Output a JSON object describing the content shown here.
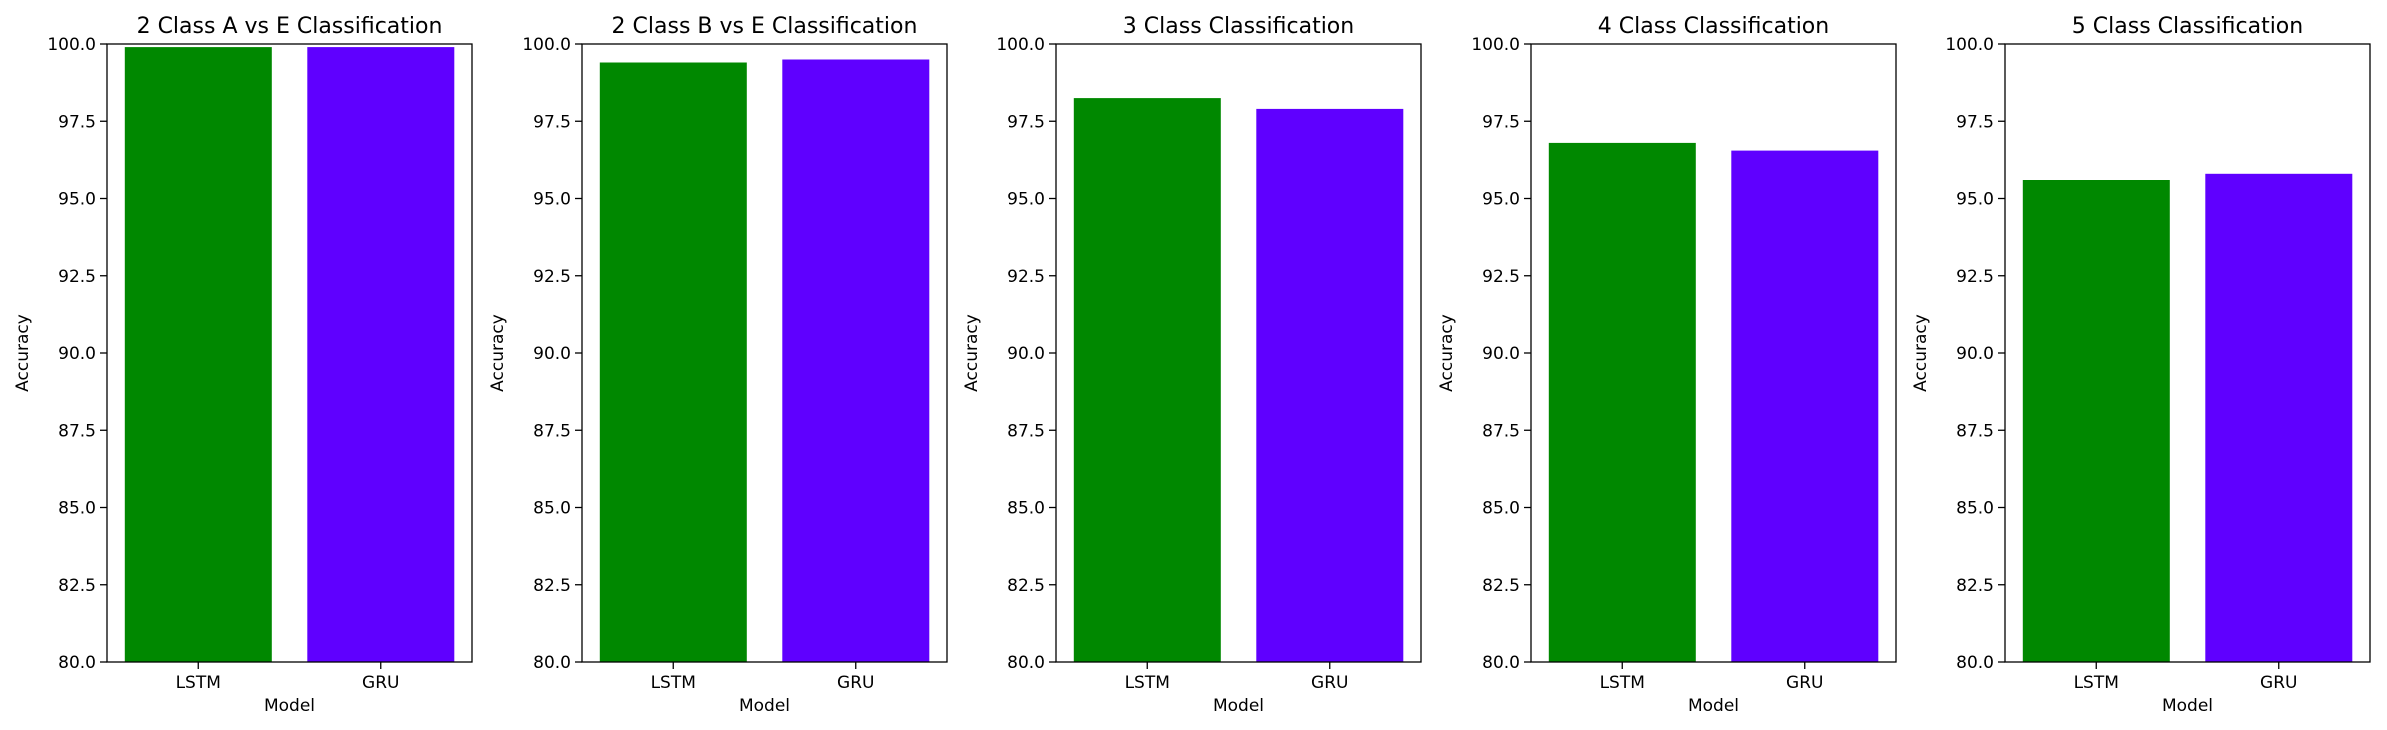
{
  "chart_data": [
    {
      "type": "bar",
      "title": "2 Class A vs E Classification",
      "categories": [
        "LSTM",
        "GRU"
      ],
      "values": [
        99.9,
        99.9
      ],
      "colors": [
        "#008800",
        "#5f00ff"
      ],
      "xlabel": "Model",
      "ylabel": "Accuracy",
      "ylim": [
        80,
        100
      ],
      "yticks": [
        "80.0",
        "82.5",
        "85.0",
        "87.5",
        "90.0",
        "92.5",
        "95.0",
        "97.5",
        "100.0"
      ],
      "grid": false
    },
    {
      "type": "bar",
      "title": "2 Class B vs E Classification",
      "categories": [
        "LSTM",
        "GRU"
      ],
      "values": [
        99.4,
        99.5
      ],
      "colors": [
        "#008800",
        "#5f00ff"
      ],
      "xlabel": "Model",
      "ylabel": "Accuracy",
      "ylim": [
        80,
        100
      ],
      "yticks": [
        "80.0",
        "82.5",
        "85.0",
        "87.5",
        "90.0",
        "92.5",
        "95.0",
        "97.5",
        "100.0"
      ],
      "grid": false
    },
    {
      "type": "bar",
      "title": "3 Class Classification",
      "categories": [
        "LSTM",
        "GRU"
      ],
      "values": [
        98.25,
        97.9
      ],
      "colors": [
        "#008800",
        "#5f00ff"
      ],
      "xlabel": "Model",
      "ylabel": "Accuracy",
      "ylim": [
        80,
        100
      ],
      "yticks": [
        "80.0",
        "82.5",
        "85.0",
        "87.5",
        "90.0",
        "92.5",
        "95.0",
        "97.5",
        "100.0"
      ],
      "grid": false
    },
    {
      "type": "bar",
      "title": "4 Class Classification",
      "categories": [
        "LSTM",
        "GRU"
      ],
      "values": [
        96.8,
        96.55
      ],
      "colors": [
        "#008800",
        "#5f00ff"
      ],
      "xlabel": "Model",
      "ylabel": "Accuracy",
      "ylim": [
        80,
        100
      ],
      "yticks": [
        "80.0",
        "82.5",
        "85.0",
        "87.5",
        "90.0",
        "92.5",
        "95.0",
        "97.5",
        "100.0"
      ],
      "grid": false
    },
    {
      "type": "bar",
      "title": "5 Class Classification",
      "categories": [
        "LSTM",
        "GRU"
      ],
      "values": [
        95.6,
        95.8
      ],
      "colors": [
        "#008800",
        "#5f00ff"
      ],
      "xlabel": "Model",
      "ylabel": "Accuracy",
      "ylim": [
        80,
        100
      ],
      "yticks": [
        "80.0",
        "82.5",
        "85.0",
        "87.5",
        "90.0",
        "92.5",
        "95.0",
        "97.5",
        "100.0"
      ],
      "grid": false
    }
  ]
}
